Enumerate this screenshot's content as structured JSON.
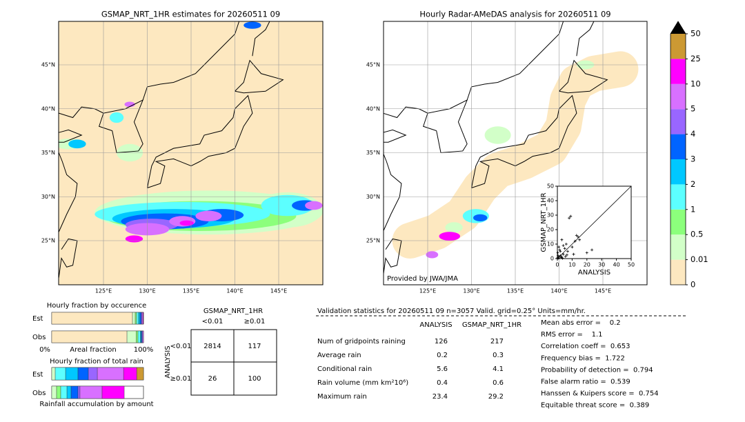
{
  "maps": [
    {
      "title": "GSMAP_NRT_1HR estimates for 20260511 09"
    },
    {
      "title": "Hourly Radar-AMeDAS analysis for 20260511 09",
      "credit": "Provided by JWA/JMA"
    }
  ],
  "lon_labels": [
    "125°E",
    "130°E",
    "135°E",
    "140°E",
    "145°E"
  ],
  "lat_labels": [
    "45°N",
    "40°N",
    "35°N",
    "30°N",
    "25°N"
  ],
  "colorbar": {
    "labels": [
      "0",
      "0.01",
      "0.5",
      "1",
      "2",
      "3",
      "4",
      "5",
      "10",
      "25",
      "50"
    ],
    "colors": [
      "#fde8c0",
      "#d2ffc8",
      "#8cff7c",
      "#5cffff",
      "#00c8ff",
      "#0064ff",
      "#9966ff",
      "#d870ff",
      "#ff00ff",
      "#cc9933"
    ],
    "extend_color": "#000000"
  },
  "scatter": {
    "type": "scatter",
    "xlabel": "ANALYSIS",
    "ylabel": "GSMAP_NRT_1HR",
    "xlim": [
      0,
      50
    ],
    "ylim": [
      0,
      50
    ],
    "xticks": [
      0,
      10,
      20,
      30,
      40,
      50
    ],
    "yticks": [
      0,
      10,
      20,
      30,
      40,
      50
    ],
    "x": [
      8,
      9,
      12,
      13,
      14,
      15,
      10,
      20,
      6,
      5,
      3,
      2,
      1,
      4,
      0.5,
      1,
      2,
      3,
      0.3,
      7,
      1.5,
      11,
      4,
      23.4,
      0.2,
      0.8,
      2.5,
      5.5,
      6.5,
      3.5
    ],
    "y": [
      28,
      29.2,
      12,
      16,
      15,
      13,
      8,
      4,
      10,
      7,
      13,
      5,
      8,
      3,
      2,
      1,
      2,
      1,
      4,
      5,
      6,
      3,
      9,
      6,
      0.5,
      0.3,
      0.8,
      1.5,
      2.5,
      0.2
    ],
    "color": "#000000"
  },
  "fractions": {
    "occurrence_title": "Hourly fraction by occurence",
    "rain_title": "Hourly fraction of total rain",
    "est": "Est",
    "obs": "Obs",
    "axis_left": "0%",
    "axis_mid": "Areal fraction",
    "axis_right": "100%",
    "footer": "Rainfall accumulation by amount",
    "occurrence_est": [
      88,
      3,
      1.5,
      2,
      1.5,
      1.5,
      1,
      1,
      0.5,
      0
    ],
    "occurrence_obs": [
      82,
      10,
      2,
      2.5,
      1,
      0.8,
      0.7,
      1,
      0,
      0
    ],
    "rain_est": [
      0,
      3.8,
      0,
      11.3,
      13.5,
      11.3,
      9.8,
      28.6,
      14.3,
      7.4
    ],
    "rain_obs": [
      0,
      5.3,
      4.5,
      6.8,
      4.5,
      7.5,
      2.2,
      24.1,
      24.1,
      0
    ]
  },
  "contingency": {
    "title": "GSMAP_NRT_1HR",
    "cols": [
      "<0.01",
      "≥0.01"
    ],
    "row_title": "ANALYSIS",
    "rows_labels": [
      "<0.01",
      "≥0.01"
    ],
    "cells": [
      [
        2814,
        117
      ],
      [
        26,
        100
      ]
    ]
  },
  "validation": {
    "header": "Validation statistics for 20260511 09  n=3057 Valid. grid=0.25° Units=mm/hr.",
    "columns": [
      "ANALYSIS",
      "GSMAP_NRT_1HR"
    ],
    "rows": [
      [
        "Num of gridpoints raining",
        126,
        217
      ],
      [
        "Average rain",
        0.2,
        0.3
      ],
      [
        "Conditional rain",
        5.6,
        4.1
      ],
      [
        "Rain volume (mm km²10⁶)",
        0.4,
        0.6
      ],
      [
        "Maximum rain",
        23.4,
        29.2
      ]
    ],
    "scores": [
      "Mean abs error =    0.2",
      "RMS error =    1.1",
      "Correlation coeff =  0.653",
      "Frequency bias =  1.722",
      "Probability of detection =  0.794",
      "False alarm ratio =  0.539",
      "Hanssen & Kuipers score =  0.754",
      "Equitable threat score =  0.389"
    ]
  }
}
